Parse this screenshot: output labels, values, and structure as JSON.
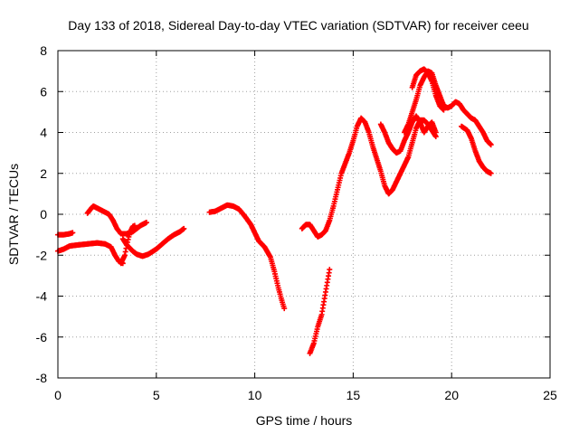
{
  "chart_data": {
    "type": "scatter",
    "title": "Day 133 of 2018, Sidereal Day-to-day VTEC variation (SDTVAR) for receiver ceeu",
    "xlabel": "GPS time / hours",
    "ylabel": "SDTVAR / TECUs",
    "xlim": [
      0,
      25
    ],
    "ylim": [
      -8,
      8
    ],
    "xticks": [
      "0",
      "5",
      "10",
      "15",
      "20",
      "25"
    ],
    "yticks": [
      "-8",
      "-6",
      "-4",
      "-2",
      "0",
      "2",
      "4",
      "6",
      "8"
    ],
    "grid": true,
    "marker": "plus",
    "color": "#ff0000",
    "series": [
      {
        "segments": [
          [
            [
              0.0,
              -1.0
            ],
            [
              0.3,
              -1.0
            ],
            [
              0.6,
              -0.95
            ],
            [
              0.75,
              -0.9
            ]
          ],
          [
            [
              0.0,
              -1.8
            ],
            [
              0.3,
              -1.7
            ],
            [
              0.6,
              -1.55
            ],
            [
              1.0,
              -1.5
            ],
            [
              1.5,
              -1.45
            ],
            [
              2.0,
              -1.4
            ],
            [
              2.4,
              -1.45
            ],
            [
              2.7,
              -1.6
            ],
            [
              2.9,
              -2.0
            ],
            [
              3.1,
              -2.3
            ],
            [
              3.3,
              -2.4
            ]
          ],
          [
            [
              3.2,
              -2.4
            ],
            [
              3.4,
              -2.0
            ],
            [
              3.5,
              -1.5
            ],
            [
              3.6,
              -1.1
            ],
            [
              3.7,
              -0.8
            ],
            [
              3.8,
              -0.6
            ],
            [
              3.9,
              -0.55
            ]
          ],
          [
            [
              1.5,
              0.05
            ],
            [
              1.7,
              0.3
            ],
            [
              1.8,
              0.4
            ],
            [
              2.0,
              0.3
            ],
            [
              2.3,
              0.15
            ],
            [
              2.6,
              0.0
            ],
            [
              2.8,
              -0.3
            ],
            [
              3.0,
              -0.7
            ],
            [
              3.2,
              -0.95
            ],
            [
              3.5,
              -0.95
            ],
            [
              3.8,
              -0.85
            ],
            [
              4.0,
              -0.7
            ],
            [
              4.2,
              -0.55
            ],
            [
              4.5,
              -0.4
            ]
          ],
          [
            [
              3.3,
              -1.2
            ],
            [
              3.5,
              -1.5
            ],
            [
              3.8,
              -1.8
            ],
            [
              4.0,
              -1.95
            ],
            [
              4.3,
              -2.05
            ],
            [
              4.6,
              -1.95
            ],
            [
              5.0,
              -1.7
            ],
            [
              5.3,
              -1.45
            ],
            [
              5.6,
              -1.2
            ],
            [
              5.9,
              -1.0
            ],
            [
              6.2,
              -0.85
            ],
            [
              6.4,
              -0.7
            ]
          ],
          [
            [
              7.7,
              0.1
            ],
            [
              8.0,
              0.15
            ],
            [
              8.3,
              0.3
            ],
            [
              8.6,
              0.45
            ],
            [
              8.9,
              0.4
            ],
            [
              9.2,
              0.25
            ],
            [
              9.5,
              -0.1
            ],
            [
              9.8,
              -0.5
            ],
            [
              10.0,
              -0.9
            ],
            [
              10.2,
              -1.3
            ],
            [
              10.5,
              -1.6
            ],
            [
              10.8,
              -2.1
            ],
            [
              11.0,
              -2.8
            ],
            [
              11.2,
              -3.6
            ],
            [
              11.4,
              -4.3
            ],
            [
              11.5,
              -4.6
            ]
          ],
          [
            [
              12.4,
              -0.7
            ],
            [
              12.6,
              -0.5
            ],
            [
              12.8,
              -0.5
            ],
            [
              13.0,
              -0.8
            ],
            [
              13.2,
              -1.1
            ],
            [
              13.4,
              -1.0
            ],
            [
              13.6,
              -0.8
            ],
            [
              13.8,
              -0.3
            ],
            [
              14.0,
              0.4
            ],
            [
              14.2,
              1.2
            ],
            [
              14.4,
              2.0
            ],
            [
              14.6,
              2.5
            ],
            [
              14.8,
              3.0
            ],
            [
              15.0,
              3.6
            ],
            [
              15.2,
              4.3
            ],
            [
              15.4,
              4.7
            ],
            [
              15.6,
              4.5
            ],
            [
              15.8,
              4.0
            ],
            [
              16.0,
              3.3
            ],
            [
              16.2,
              2.7
            ],
            [
              16.4,
              2.1
            ],
            [
              16.6,
              1.4
            ],
            [
              16.8,
              1.0
            ],
            [
              17.0,
              1.2
            ],
            [
              17.2,
              1.6
            ],
            [
              17.4,
              2.0
            ],
            [
              17.6,
              2.4
            ],
            [
              17.8,
              2.8
            ],
            [
              18.0,
              3.5
            ],
            [
              18.2,
              4.2
            ],
            [
              18.4,
              4.6
            ],
            [
              18.6,
              4.6
            ],
            [
              18.8,
              4.4
            ],
            [
              19.0,
              4.1
            ],
            [
              19.2,
              3.8
            ]
          ],
          [
            [
              12.8,
              -6.8
            ],
            [
              13.0,
              -6.3
            ],
            [
              13.2,
              -5.5
            ],
            [
              13.4,
              -4.9
            ],
            [
              13.6,
              -3.8
            ],
            [
              13.8,
              -2.7
            ]
          ],
          [
            [
              16.4,
              4.4
            ],
            [
              16.6,
              4.0
            ],
            [
              16.8,
              3.5
            ],
            [
              17.0,
              3.2
            ],
            [
              17.2,
              3.0
            ],
            [
              17.4,
              3.1
            ],
            [
              17.6,
              3.6
            ],
            [
              17.8,
              4.0
            ],
            [
              18.0,
              4.5
            ],
            [
              18.2,
              4.8
            ],
            [
              18.4,
              4.5
            ],
            [
              18.6,
              4.0
            ],
            [
              18.8,
              4.3
            ],
            [
              19.0,
              4.5
            ],
            [
              19.2,
              4.0
            ]
          ],
          [
            [
              17.6,
              4.0
            ],
            [
              17.8,
              4.4
            ],
            [
              18.0,
              5.0
            ],
            [
              18.2,
              5.6
            ],
            [
              18.4,
              6.3
            ],
            [
              18.6,
              6.7
            ],
            [
              18.8,
              7.0
            ],
            [
              19.0,
              6.9
            ],
            [
              19.2,
              6.3
            ],
            [
              19.4,
              5.8
            ],
            [
              19.6,
              5.3
            ],
            [
              19.8,
              5.2
            ],
            [
              20.0,
              5.3
            ],
            [
              20.2,
              5.5
            ],
            [
              20.4,
              5.4
            ],
            [
              20.6,
              5.1
            ],
            [
              20.8,
              4.9
            ],
            [
              21.0,
              4.7
            ],
            [
              21.2,
              4.6
            ],
            [
              21.4,
              4.3
            ],
            [
              21.6,
              4.0
            ],
            [
              21.8,
              3.6
            ],
            [
              22.0,
              3.4
            ]
          ],
          [
            [
              18.0,
              6.2
            ],
            [
              18.2,
              6.8
            ],
            [
              18.4,
              7.0
            ],
            [
              18.6,
              7.1
            ],
            [
              18.8,
              6.9
            ],
            [
              19.0,
              6.5
            ],
            [
              19.2,
              5.8
            ],
            [
              19.4,
              5.3
            ],
            [
              19.6,
              5.1
            ]
          ],
          [
            [
              20.5,
              4.3
            ],
            [
              20.8,
              4.1
            ],
            [
              21.0,
              3.7
            ],
            [
              21.2,
              3.1
            ],
            [
              21.4,
              2.6
            ],
            [
              21.6,
              2.3
            ],
            [
              21.8,
              2.1
            ],
            [
              22.0,
              2.0
            ]
          ]
        ]
      }
    ]
  }
}
